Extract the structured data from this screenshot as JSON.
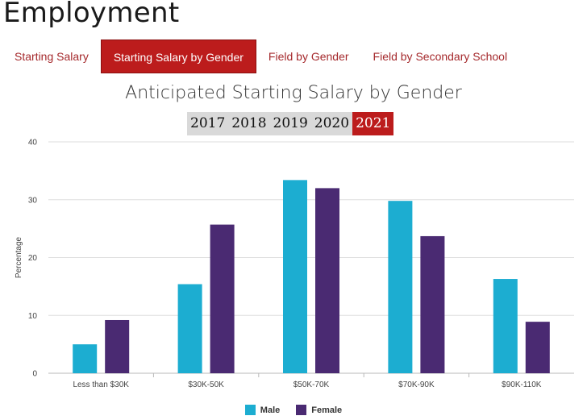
{
  "page": {
    "title": "Employment"
  },
  "tabs": [
    {
      "label": "Starting Salary",
      "active": false
    },
    {
      "label": "Starting Salary by Gender",
      "active": true
    },
    {
      "label": "Field by Gender",
      "active": false
    },
    {
      "label": "Field by Secondary School",
      "active": false
    }
  ],
  "years": [
    {
      "label": "2017",
      "active": false
    },
    {
      "label": "2018",
      "active": false
    },
    {
      "label": "2019",
      "active": false
    },
    {
      "label": "2020",
      "active": false
    },
    {
      "label": "2021",
      "active": true
    }
  ],
  "chart_data": {
    "type": "bar",
    "title": "Anticipated Starting Salary by Gender",
    "xlabel": "",
    "ylabel": "Percentage",
    "ylim": [
      0,
      40
    ],
    "yticks": [
      0,
      10,
      20,
      30,
      40
    ],
    "grid": true,
    "legend_position": "bottom",
    "categories": [
      "Less than $30K",
      "$30K-50K",
      "$50K-70K",
      "$70K-90K",
      "$90K-110K"
    ],
    "series": [
      {
        "name": "Male",
        "color": "#1cadd1",
        "values": [
          5.0,
          15.4,
          33.4,
          29.8,
          16.3
        ]
      },
      {
        "name": "Female",
        "color": "#4a2a72",
        "values": [
          9.2,
          25.7,
          32.0,
          23.7,
          8.9
        ]
      }
    ]
  }
}
